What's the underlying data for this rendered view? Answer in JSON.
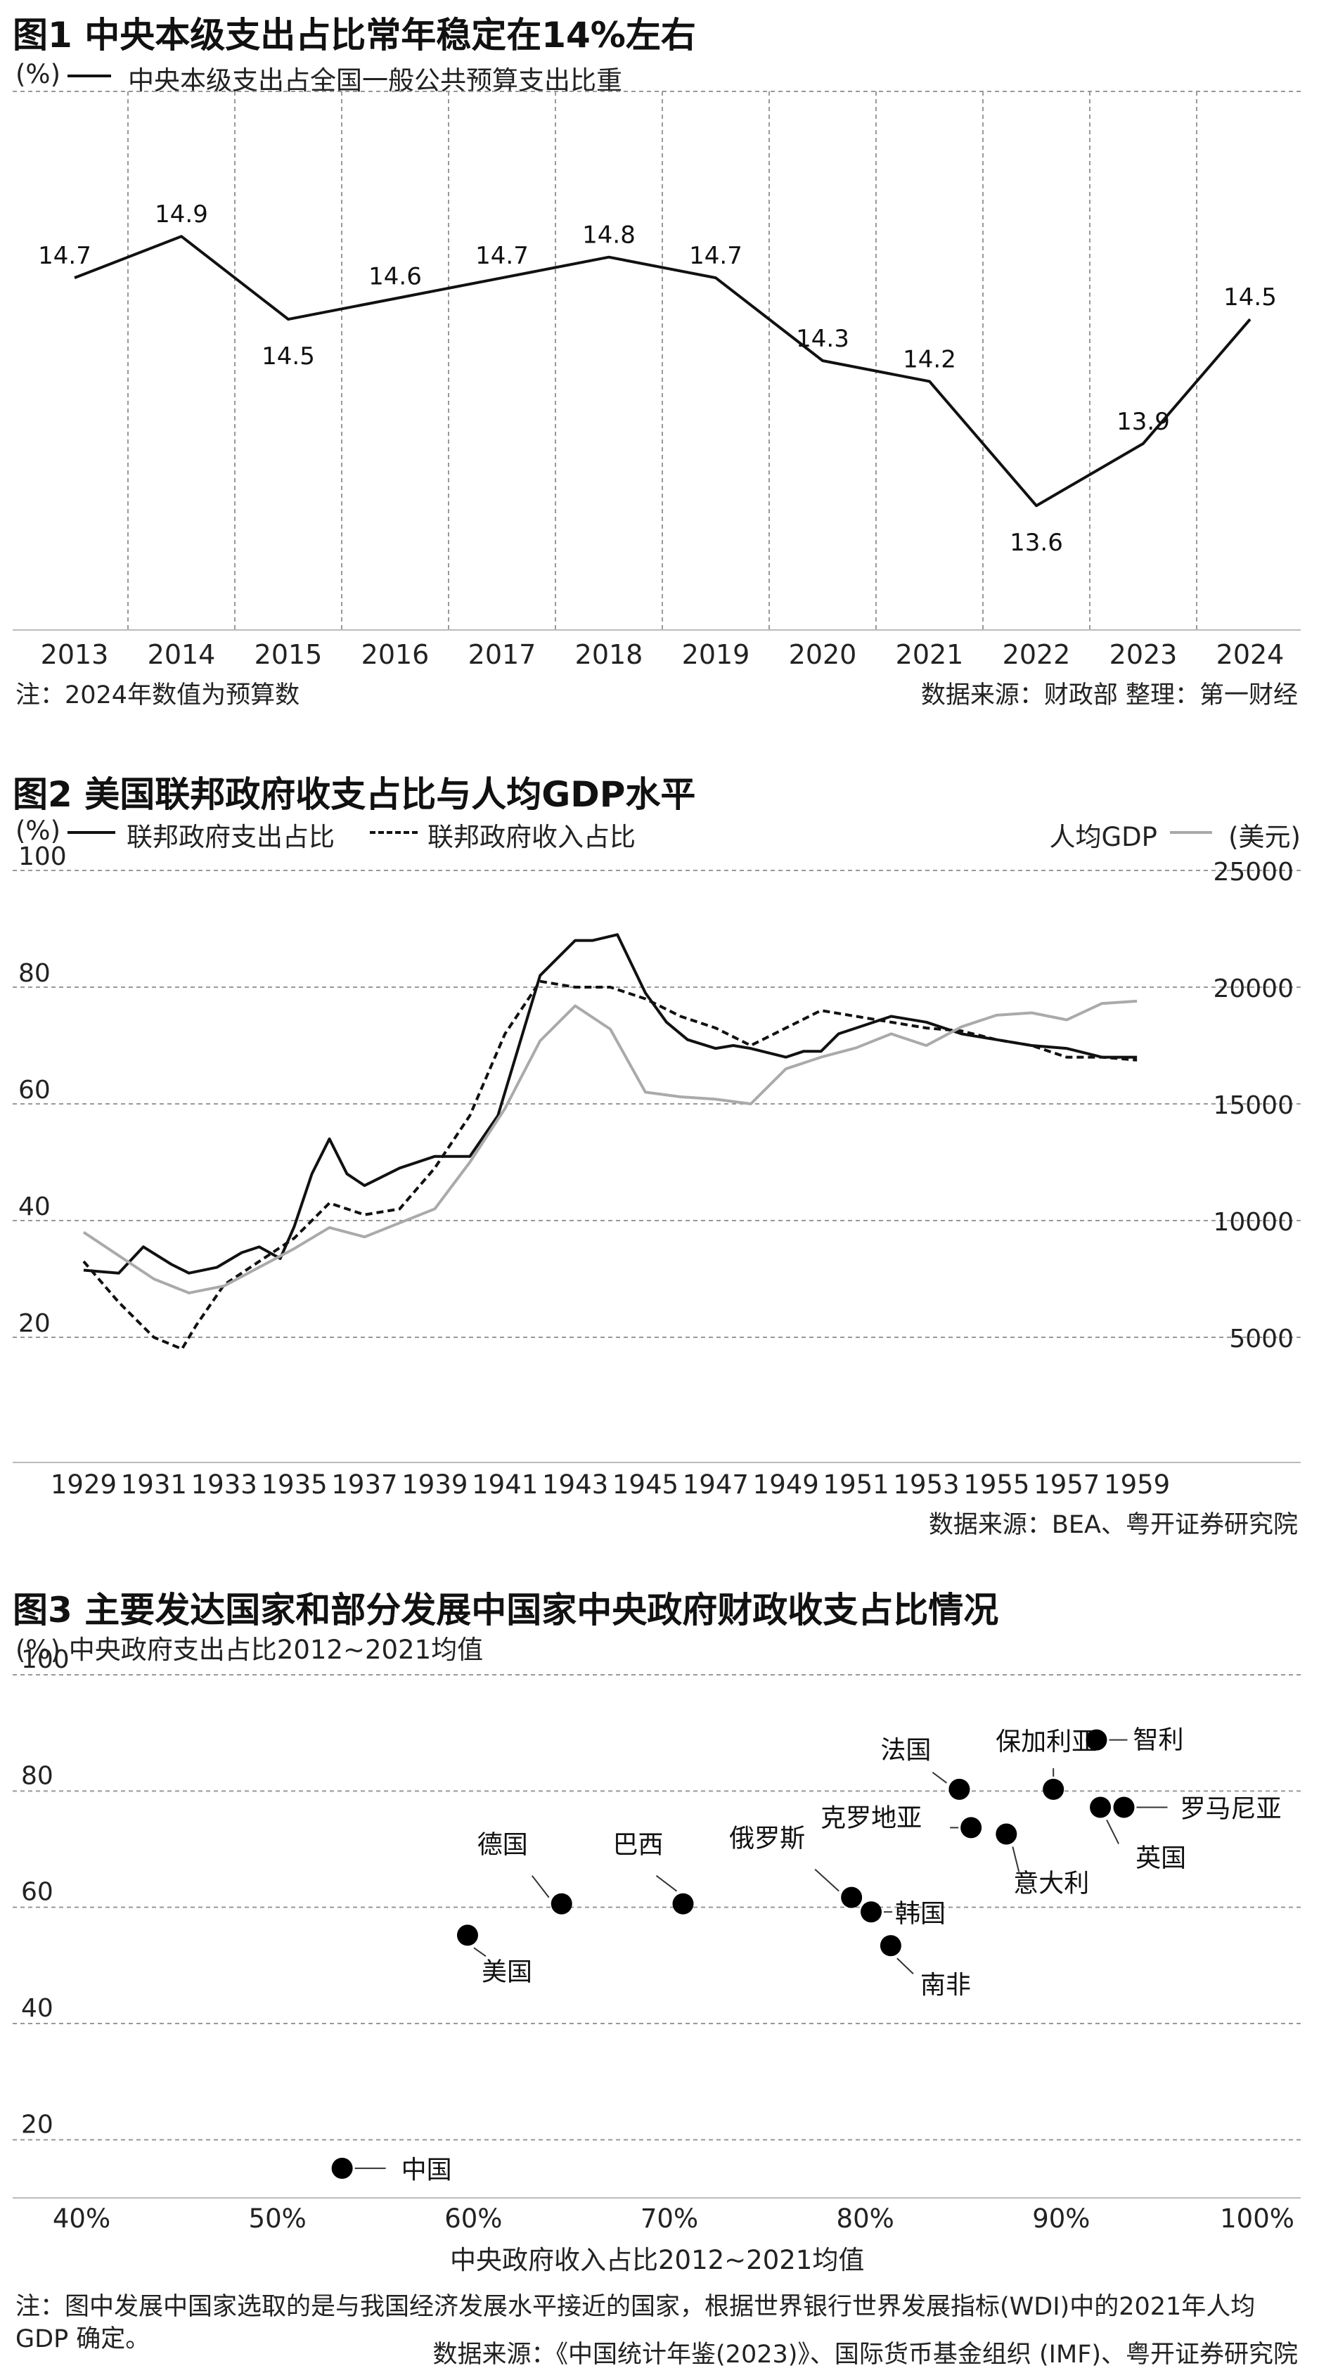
{
  "chart_data": [
    {
      "type": "line",
      "title": "图1 中央本级支出占比常年稳定在14%左右",
      "unit_label": "(%)",
      "legend": [
        "中央本级支出占全国一般公共预算支出比重"
      ],
      "categories": [
        "2013",
        "2014",
        "2015",
        "2016",
        "2017",
        "2018",
        "2019",
        "2020",
        "2021",
        "2022",
        "2023",
        "2024"
      ],
      "series": [
        {
          "name": "中央本级支出占全国一般公共预算支出比重",
          "values": [
            14.7,
            14.9,
            14.5,
            14.6,
            14.7,
            14.8,
            14.7,
            14.3,
            14.2,
            13.6,
            13.9,
            14.5
          ],
          "labels": [
            "14.7",
            "14.9",
            "14.5",
            "14.6",
            "14.7",
            "14.8",
            "14.7",
            "14.3",
            "14.2",
            "13.6",
            "13.9",
            "14.5"
          ],
          "color": "#111111"
        }
      ],
      "ylim": [
        13.0,
        15.6
      ],
      "vertical_grid": "dashed",
      "note": "注：2024年数值为预算数",
      "source": "数据来源：财政部 整理：第一财经"
    },
    {
      "type": "line",
      "title": "图2 美国联邦政府收支占比与人均GDP水平",
      "left_unit": "(%)",
      "right_unit": "(美元)",
      "legend": [
        "联邦政府支出占比",
        "联邦政府收入占比",
        "人均GDP"
      ],
      "x": [
        1929,
        1930,
        1931,
        1932,
        1933,
        1934,
        1935,
        1936,
        1937,
        1938,
        1939,
        1940,
        1941,
        1942,
        1943,
        1944,
        1945,
        1946,
        1947,
        1948,
        1949,
        1950,
        1951,
        1952,
        1953,
        1954,
        1955,
        1956,
        1957,
        1958,
        1959
      ],
      "x_ticks": [
        "1929",
        "1931",
        "1933",
        "1935",
        "1937",
        "1939",
        "1941",
        "1943",
        "1945",
        "1947",
        "1949",
        "1951",
        "1953",
        "1955",
        "1957",
        "1959"
      ],
      "left_ticks": [
        "100",
        "80",
        "60",
        "40",
        "20"
      ],
      "right_ticks": [
        "25000",
        "20000",
        "15000",
        "10000",
        "5000"
      ],
      "ylim_left": [
        0,
        100
      ],
      "ylim_right": [
        0,
        25000
      ],
      "series": [
        {
          "name": "联邦政府支出占比",
          "axis": "left",
          "style": "solid",
          "color": "#111111",
          "x": [
            1929,
            1930,
            1930.7,
            1931.5,
            1932,
            1932.8,
            1933.5,
            1934,
            1934.6,
            1935,
            1935.5,
            1936,
            1936.5,
            1937,
            1938,
            1939,
            1940,
            1940.8,
            1941.5,
            1942,
            1943,
            1943.5,
            1944.2,
            1945,
            1945.6,
            1946.2,
            1947,
            1947.5,
            1948,
            1949,
            1949.5,
            1950,
            1950.5,
            1951,
            1952,
            1953,
            1954,
            1955,
            1956,
            1957,
            1958,
            1959
          ],
          "values": [
            31.5,
            31,
            35.5,
            32.5,
            31,
            32,
            34.5,
            35.5,
            33.5,
            39,
            48,
            54,
            48,
            46,
            49,
            51,
            51,
            58,
            72,
            82,
            88,
            88,
            89,
            79,
            74,
            71,
            69.5,
            70,
            69.5,
            68,
            69,
            69,
            72,
            73,
            75,
            74,
            72,
            71,
            70,
            69.5,
            68,
            68
          ]
        },
        {
          "name": "联邦政府收入占比",
          "axis": "left",
          "style": "dashed",
          "color": "#111111",
          "x": [
            1929,
            1930,
            1931,
            1931.8,
            1932.2,
            1933,
            1934,
            1935,
            1936,
            1937,
            1938,
            1939,
            1940,
            1941,
            1942,
            1943,
            1944,
            1945,
            1946,
            1947,
            1948,
            1949,
            1950,
            1951,
            1952,
            1953,
            1954,
            1955,
            1956,
            1957,
            1958,
            1959
          ],
          "values": [
            33,
            26,
            20,
            18,
            22,
            29,
            33,
            37,
            43,
            41,
            42,
            49,
            58,
            72,
            81,
            80,
            80,
            78,
            75,
            73,
            70,
            73,
            76,
            75,
            74,
            73,
            72.5,
            71,
            70,
            68,
            68,
            67.5
          ]
        },
        {
          "name": "人均GDP",
          "axis": "right",
          "style": "solid",
          "color": "#aaaaaa",
          "x": [
            1929,
            1930,
            1931,
            1932,
            1933,
            1934,
            1935,
            1936,
            1937,
            1938,
            1939,
            1940,
            1941,
            1942,
            1943,
            1944,
            1945,
            1946,
            1947,
            1948,
            1949,
            1950,
            1951,
            1952,
            1953,
            1954,
            1955,
            1956,
            1957,
            1958,
            1959
          ],
          "values": [
            9500,
            8500,
            7500,
            6900,
            7200,
            8000,
            8800,
            9700,
            9300,
            9900,
            10500,
            12500,
            14800,
            17700,
            19200,
            18200,
            15500,
            15300,
            15200,
            15000,
            16500,
            17000,
            17400,
            18000,
            17500,
            18300,
            18800,
            18900,
            18600,
            19300,
            19400
          ]
        }
      ],
      "source": "数据来源：BEA、粤开证券研究院"
    },
    {
      "type": "scatter",
      "title": "图3 主要发达国家和部分发展中国家中央政府财政收支占比情况",
      "ylabel": "(%) 中央政府支出占比2012~2021均值",
      "xlabel": "中央政府收入占比2012~2021均值",
      "x_ticks": [
        "40%",
        "50%",
        "60%",
        "70%",
        "80%",
        "90%",
        "100%"
      ],
      "y_ticks": [
        "100",
        "80",
        "60",
        "40",
        "20"
      ],
      "xlim": [
        40,
        100
      ],
      "ylim": [
        10,
        100
      ],
      "points": [
        {
          "label": "中国",
          "x": 53.3,
          "y": 15.1
        },
        {
          "label": "美国",
          "x": 59.7,
          "y": 55.2
        },
        {
          "label": "德国",
          "x": 64.5,
          "y": 60.6
        },
        {
          "label": "巴西",
          "x": 70.7,
          "y": 60.6
        },
        {
          "label": "俄罗斯",
          "x": 79.3,
          "y": 61.7
        },
        {
          "label": "韩国",
          "x": 80.3,
          "y": 59.2
        },
        {
          "label": "南非",
          "x": 81.3,
          "y": 53.4
        },
        {
          "label": "法国",
          "x": 84.8,
          "y": 80.3
        },
        {
          "label": "克罗地亚",
          "x": 85.4,
          "y": 73.7
        },
        {
          "label": "意大利",
          "x": 87.2,
          "y": 72.6
        },
        {
          "label": "保加利亚",
          "x": 89.6,
          "y": 80.3
        },
        {
          "label": "智利",
          "x": 91.8,
          "y": 88.8
        },
        {
          "label": "英国",
          "x": 92.0,
          "y": 77.2
        },
        {
          "label": "罗马尼亚",
          "x": 93.2,
          "y": 77.2
        }
      ],
      "note": "注：图中发展中国家选取的是与我国经济发展水平接近的国家，根据世界银行世界发展指标(WDI)中的2021年人均GDP 确定。",
      "source": "数据来源：《中国统计年鉴(2023)》、国际货币基金组织 (IMF)、粤开证券研究院"
    }
  ]
}
